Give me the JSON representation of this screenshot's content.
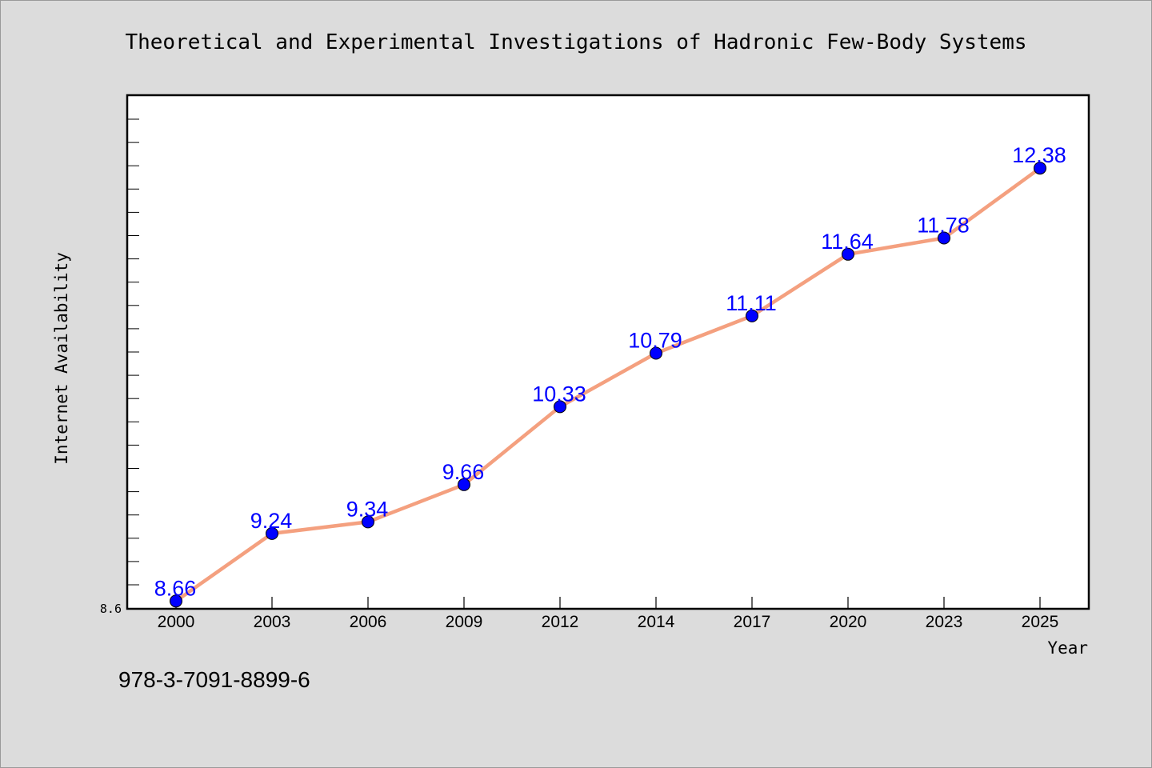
{
  "chart_data": {
    "type": "line",
    "title": "Theoretical and Experimental Investigations of Hadronic Few-Body Systems",
    "xlabel": "Year",
    "ylabel": "Internet Availability",
    "categories": [
      "2000",
      "2003",
      "2006",
      "2009",
      "2012",
      "2014",
      "2017",
      "2020",
      "2023",
      "2025"
    ],
    "series": [
      {
        "values": [
          8.66,
          9.24,
          9.34,
          9.66,
          10.33,
          10.79,
          11.11,
          11.64,
          11.78,
          12.38
        ]
      }
    ],
    "y_tick_labels": [
      "8.6"
    ],
    "ylim": [
      8.6,
      13.0
    ],
    "grid": false,
    "legend": "none",
    "line_color": "#f4a07f",
    "marker_color": "#0000ff",
    "label_color": "#0000ff"
  },
  "footer": {
    "isbn": "978-3-7091-8899-6"
  }
}
